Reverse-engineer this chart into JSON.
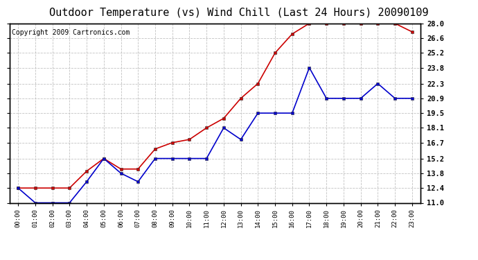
{
  "title": "Outdoor Temperature (vs) Wind Chill (Last 24 Hours) 20090109",
  "copyright": "Copyright 2009 Cartronics.com",
  "hours": [
    "00:00",
    "01:00",
    "02:00",
    "03:00",
    "04:00",
    "05:00",
    "06:00",
    "07:00",
    "08:00",
    "09:00",
    "10:00",
    "11:00",
    "12:00",
    "13:00",
    "14:00",
    "15:00",
    "16:00",
    "17:00",
    "18:00",
    "19:00",
    "20:00",
    "21:00",
    "22:00",
    "23:00"
  ],
  "outdoor_temp": [
    12.4,
    12.4,
    12.4,
    12.4,
    14.0,
    15.2,
    14.2,
    14.2,
    16.1,
    16.7,
    17.0,
    18.1,
    19.0,
    20.9,
    22.3,
    25.2,
    27.0,
    28.0,
    28.0,
    28.0,
    28.0,
    28.0,
    28.0,
    27.2
  ],
  "wind_chill": [
    12.4,
    11.0,
    11.0,
    11.0,
    13.0,
    15.2,
    13.8,
    13.0,
    15.2,
    15.2,
    15.2,
    15.2,
    18.1,
    17.0,
    19.5,
    19.5,
    19.5,
    23.8,
    20.9,
    20.9,
    20.9,
    22.3,
    20.9,
    20.9
  ],
  "outdoor_temp_color": "#cc0000",
  "wind_chill_color": "#0000cc",
  "bg_color": "#ffffff",
  "grid_color": "#bbbbbb",
  "ylim": [
    11.0,
    28.0
  ],
  "yticks": [
    11.0,
    12.4,
    13.8,
    15.2,
    16.7,
    18.1,
    19.5,
    20.9,
    22.3,
    23.8,
    25.2,
    26.6,
    28.0
  ],
  "title_fontsize": 11,
  "copyright_fontsize": 7
}
